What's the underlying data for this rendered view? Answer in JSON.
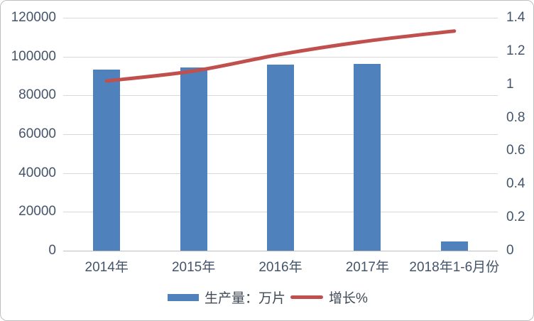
{
  "chart_data": {
    "type": "combo-bar-line",
    "title": "",
    "categories": [
      "2014年",
      "2015年",
      "2016年",
      "2017年",
      "2018年1-6月份"
    ],
    "series": [
      {
        "name": "生产量：万片",
        "type": "bar",
        "axis": "left",
        "color": "#4f81bd",
        "values": [
          93300,
          94400,
          95800,
          96200,
          4800
        ]
      },
      {
        "name": "增长%",
        "type": "line",
        "axis": "right",
        "color": "#c0504d",
        "values": [
          1.02,
          1.08,
          1.18,
          1.26,
          1.32
        ]
      }
    ],
    "left_axis": {
      "min": 0,
      "max": 120000,
      "step": 20000,
      "ticks": [
        "120000",
        "100000",
        "80000",
        "60000",
        "40000",
        "20000",
        "0"
      ]
    },
    "right_axis": {
      "min": 0,
      "max": 1.4,
      "step": 0.2,
      "ticks": [
        "1.4",
        "1.2",
        "1",
        "0.8",
        "0.6",
        "0.4",
        "0.2",
        "0"
      ]
    },
    "grid": true,
    "legend_position": "bottom",
    "colors": {
      "bar": "#4f81bd",
      "line": "#c0504d",
      "gridline": "#d9d9d9",
      "axis_line": "#bfbfbf",
      "text": "#44546a",
      "border": "#bfbfbf"
    }
  }
}
